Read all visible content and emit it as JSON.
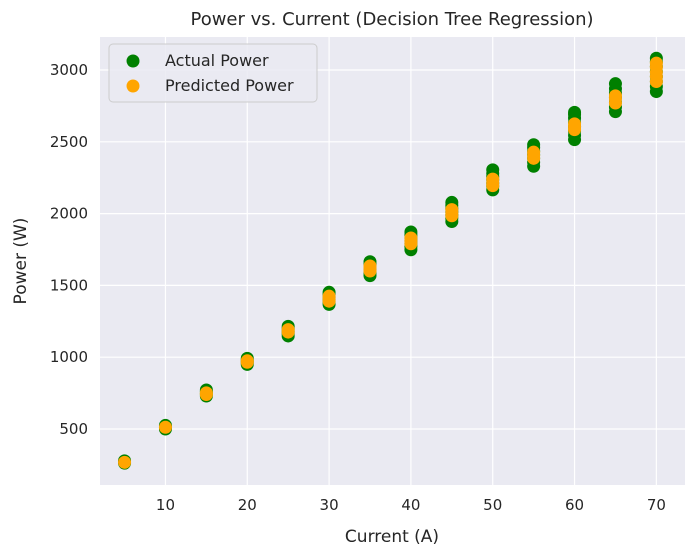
{
  "chart_data": {
    "type": "scatter",
    "title": "Power vs. Current (Decision Tree Regression)",
    "xlabel": "Current (A)",
    "ylabel": "Power (W)",
    "xlim": [
      2,
      73.5
    ],
    "ylim": [
      110,
      3230
    ],
    "xticks": [
      10,
      20,
      30,
      40,
      50,
      60,
      70
    ],
    "yticks": [
      500,
      1000,
      1500,
      2000,
      2500,
      3000
    ],
    "grid": true,
    "legend_position": "top-left",
    "series": [
      {
        "name": "Actual Power",
        "color": "#008000",
        "points": [
          [
            5,
            262
          ],
          [
            5,
            270
          ],
          [
            5,
            278
          ],
          [
            10,
            500
          ],
          [
            10,
            512
          ],
          [
            10,
            525
          ],
          [
            15,
            730
          ],
          [
            15,
            745
          ],
          [
            15,
            760
          ],
          [
            15,
            772
          ],
          [
            20,
            950
          ],
          [
            20,
            965
          ],
          [
            20,
            978
          ],
          [
            20,
            992
          ],
          [
            25,
            1148
          ],
          [
            25,
            1165
          ],
          [
            25,
            1180
          ],
          [
            25,
            1198
          ],
          [
            25,
            1215
          ],
          [
            30,
            1368
          ],
          [
            30,
            1385
          ],
          [
            30,
            1400
          ],
          [
            30,
            1418
          ],
          [
            30,
            1435
          ],
          [
            30,
            1452
          ],
          [
            35,
            1568
          ],
          [
            35,
            1588
          ],
          [
            35,
            1605
          ],
          [
            35,
            1625
          ],
          [
            35,
            1645
          ],
          [
            35,
            1665
          ],
          [
            40,
            1748
          ],
          [
            40,
            1770
          ],
          [
            40,
            1790
          ],
          [
            40,
            1810
          ],
          [
            40,
            1830
          ],
          [
            40,
            1852
          ],
          [
            40,
            1872
          ],
          [
            45,
            1945
          ],
          [
            45,
            1968
          ],
          [
            45,
            1990
          ],
          [
            45,
            2012
          ],
          [
            45,
            2035
          ],
          [
            45,
            2058
          ],
          [
            45,
            2078
          ],
          [
            50,
            2165
          ],
          [
            50,
            2190
          ],
          [
            50,
            2212
          ],
          [
            50,
            2235
          ],
          [
            50,
            2258
          ],
          [
            50,
            2280
          ],
          [
            50,
            2305
          ],
          [
            55,
            2330
          ],
          [
            55,
            2358
          ],
          [
            55,
            2385
          ],
          [
            55,
            2410
          ],
          [
            55,
            2435
          ],
          [
            55,
            2460
          ],
          [
            55,
            2480
          ],
          [
            60,
            2515
          ],
          [
            60,
            2545
          ],
          [
            60,
            2575
          ],
          [
            60,
            2605
          ],
          [
            60,
            2635
          ],
          [
            60,
            2665
          ],
          [
            60,
            2690
          ],
          [
            60,
            2705
          ],
          [
            65,
            2710
          ],
          [
            65,
            2742
          ],
          [
            65,
            2775
          ],
          [
            65,
            2808
          ],
          [
            65,
            2840
          ],
          [
            65,
            2870
          ],
          [
            65,
            2905
          ],
          [
            70,
            2850
          ],
          [
            70,
            2885
          ],
          [
            70,
            2920
          ],
          [
            70,
            2955
          ],
          [
            70,
            2990
          ],
          [
            70,
            3025
          ],
          [
            70,
            3058
          ],
          [
            70,
            3082
          ]
        ]
      },
      {
        "name": "Predicted Power",
        "color": "#FFA500",
        "points": [
          [
            5,
            268
          ],
          [
            10,
            512
          ],
          [
            15,
            740
          ],
          [
            15,
            752
          ],
          [
            20,
            965
          ],
          [
            20,
            975
          ],
          [
            25,
            1175
          ],
          [
            25,
            1192
          ],
          [
            30,
            1390
          ],
          [
            30,
            1410
          ],
          [
            30,
            1425
          ],
          [
            35,
            1600
          ],
          [
            35,
            1620
          ],
          [
            35,
            1635
          ],
          [
            40,
            1790
          ],
          [
            40,
            1810
          ],
          [
            40,
            1830
          ],
          [
            45,
            1985
          ],
          [
            45,
            2005
          ],
          [
            45,
            2028
          ],
          [
            50,
            2195
          ],
          [
            50,
            2215
          ],
          [
            50,
            2240
          ],
          [
            55,
            2385
          ],
          [
            55,
            2405
          ],
          [
            55,
            2428
          ],
          [
            60,
            2585
          ],
          [
            60,
            2605
          ],
          [
            60,
            2625
          ],
          [
            65,
            2770
          ],
          [
            65,
            2800
          ],
          [
            65,
            2820
          ],
          [
            70,
            2920
          ],
          [
            70,
            2955
          ],
          [
            70,
            2985
          ],
          [
            70,
            3020
          ],
          [
            70,
            3048
          ]
        ]
      }
    ]
  }
}
